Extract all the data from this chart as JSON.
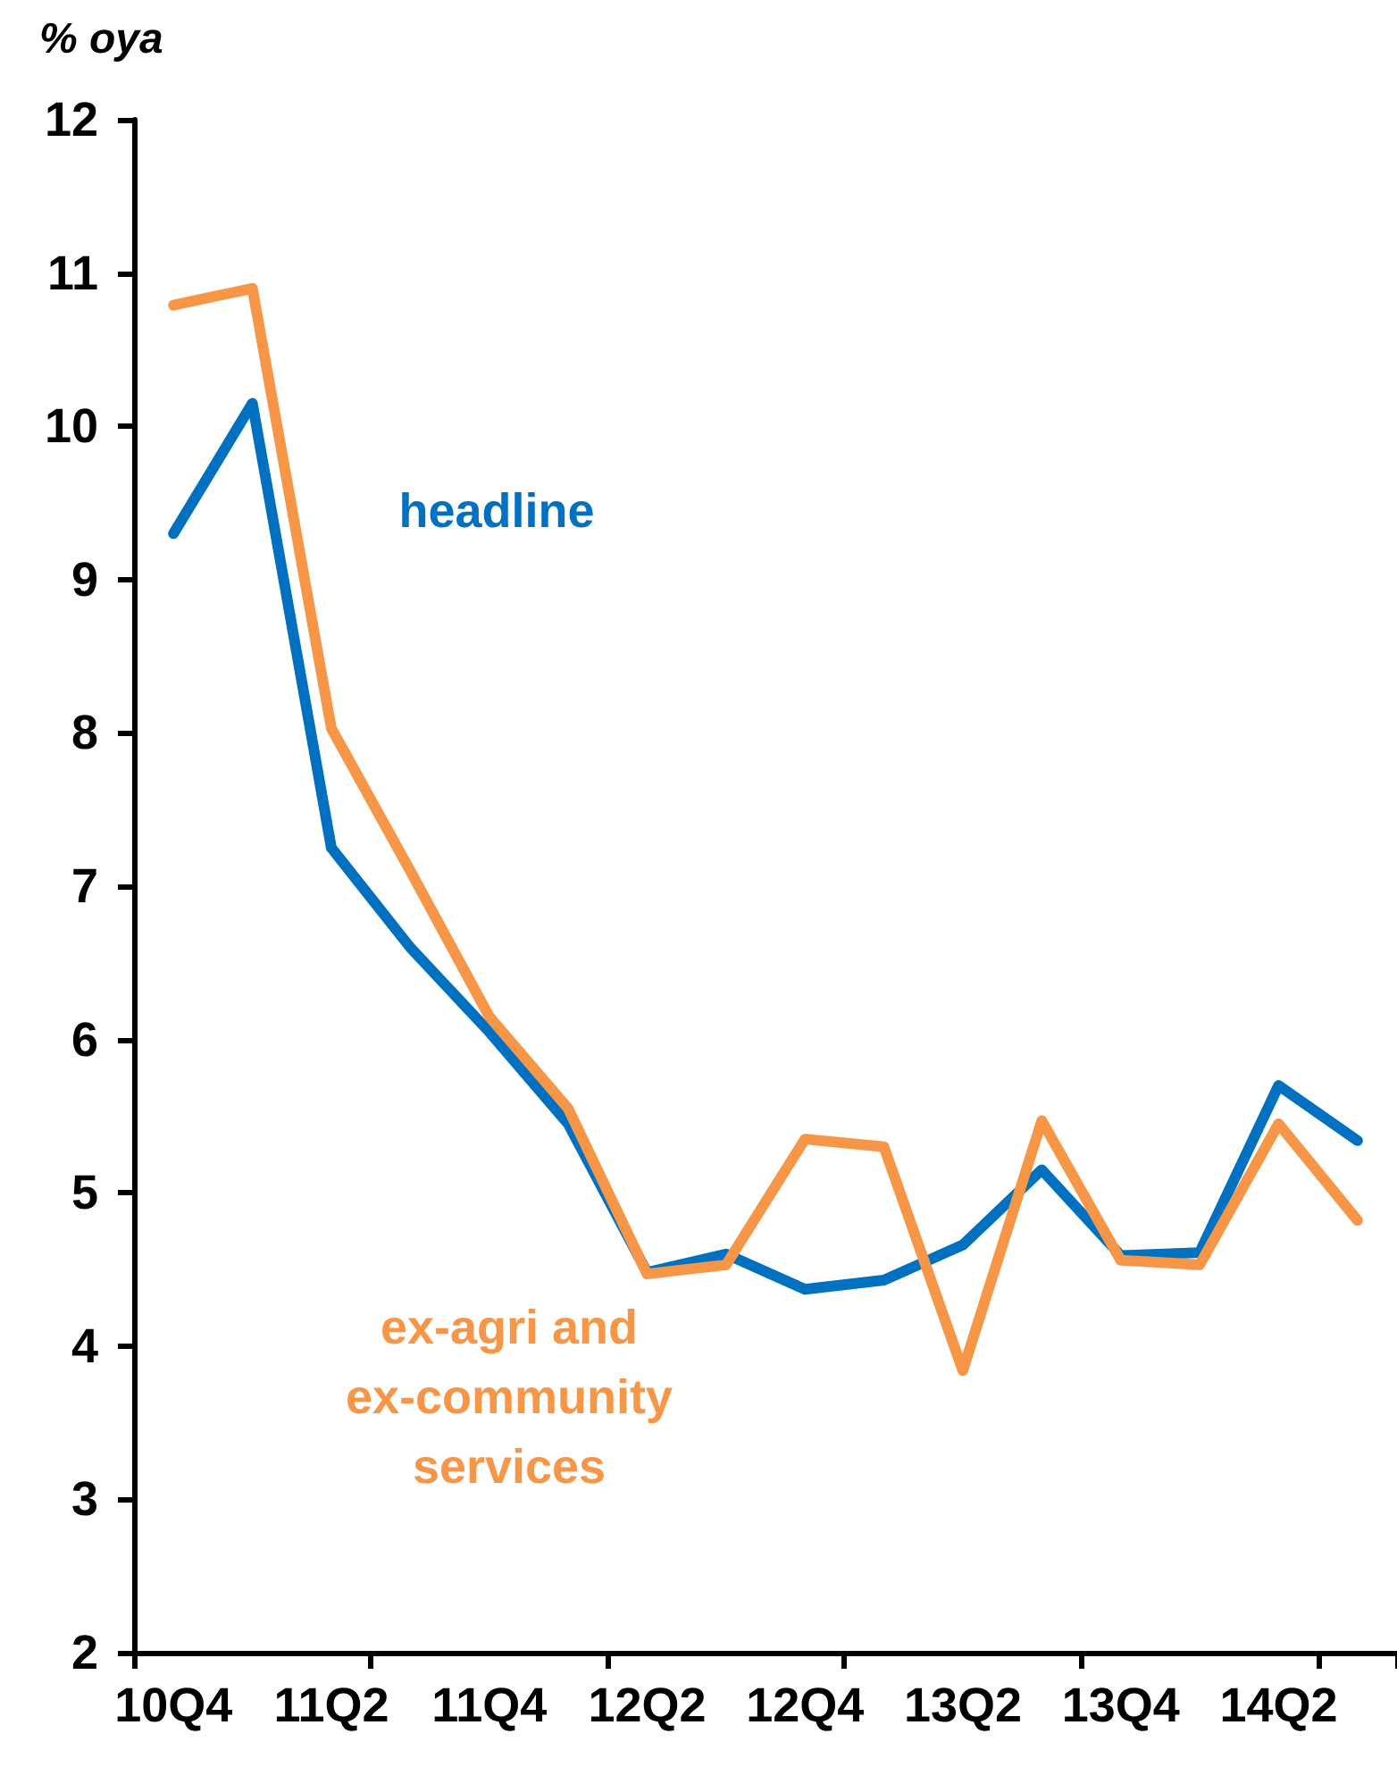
{
  "chart_data": {
    "type": "line",
    "ylabel": "% oya",
    "categories": [
      "10Q4",
      null,
      "11Q2",
      null,
      "11Q4",
      null,
      "12Q2",
      null,
      "12Q4",
      null,
      "13Q2",
      null,
      "13Q4",
      null,
      "14Q2",
      null
    ],
    "series": [
      {
        "name": "headline",
        "color": "#0070c0",
        "values": [
          9.3,
          10.15,
          7.25,
          6.6,
          6.05,
          5.45,
          4.48,
          4.6,
          4.37,
          4.43,
          4.66,
          5.15,
          4.59,
          4.61,
          5.7,
          5.34
        ]
      },
      {
        "name": "ex-agri and ex-community services",
        "color": "#f79646",
        "values": [
          10.79,
          10.9,
          8.03,
          7.1,
          6.15,
          5.55,
          4.47,
          4.53,
          5.35,
          5.3,
          3.84,
          5.47,
          4.56,
          4.53,
          5.45,
          4.82
        ]
      }
    ],
    "ylim": [
      2,
      12
    ],
    "yticks": [
      2,
      3,
      4,
      5,
      6,
      7,
      8,
      9,
      10,
      11,
      12
    ],
    "grid": false,
    "marker": "none",
    "line_style": "solid"
  }
}
